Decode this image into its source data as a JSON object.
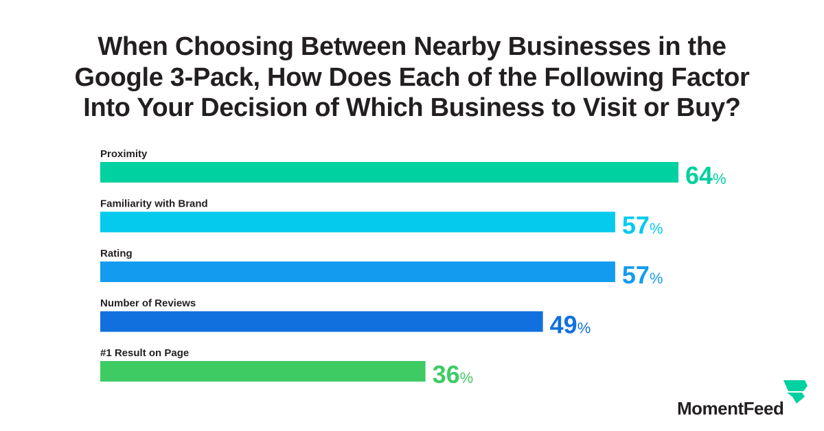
{
  "chart_data": {
    "type": "bar",
    "orientation": "horizontal",
    "title_lines": [
      "When Choosing Between Nearby Businesses in the",
      "Google 3-Pack, How Does Each of the Following Factor",
      "Into Your Decision of Which Business to Visit or Buy?"
    ],
    "categories": [
      "Proximity",
      "Familiarity with Brand",
      "Rating",
      "Number of Reviews",
      "#1 Result on Page"
    ],
    "values": [
      64,
      57,
      57,
      49,
      36
    ],
    "value_suffix": "%",
    "colors": [
      "#00d1a0",
      "#05caee",
      "#139cef",
      "#1170de",
      "#3fcb64"
    ],
    "xlim": [
      0,
      64
    ],
    "grid": false,
    "legend": "none"
  },
  "brand": {
    "name": "MomentFeed",
    "color": "#00d1a0"
  }
}
